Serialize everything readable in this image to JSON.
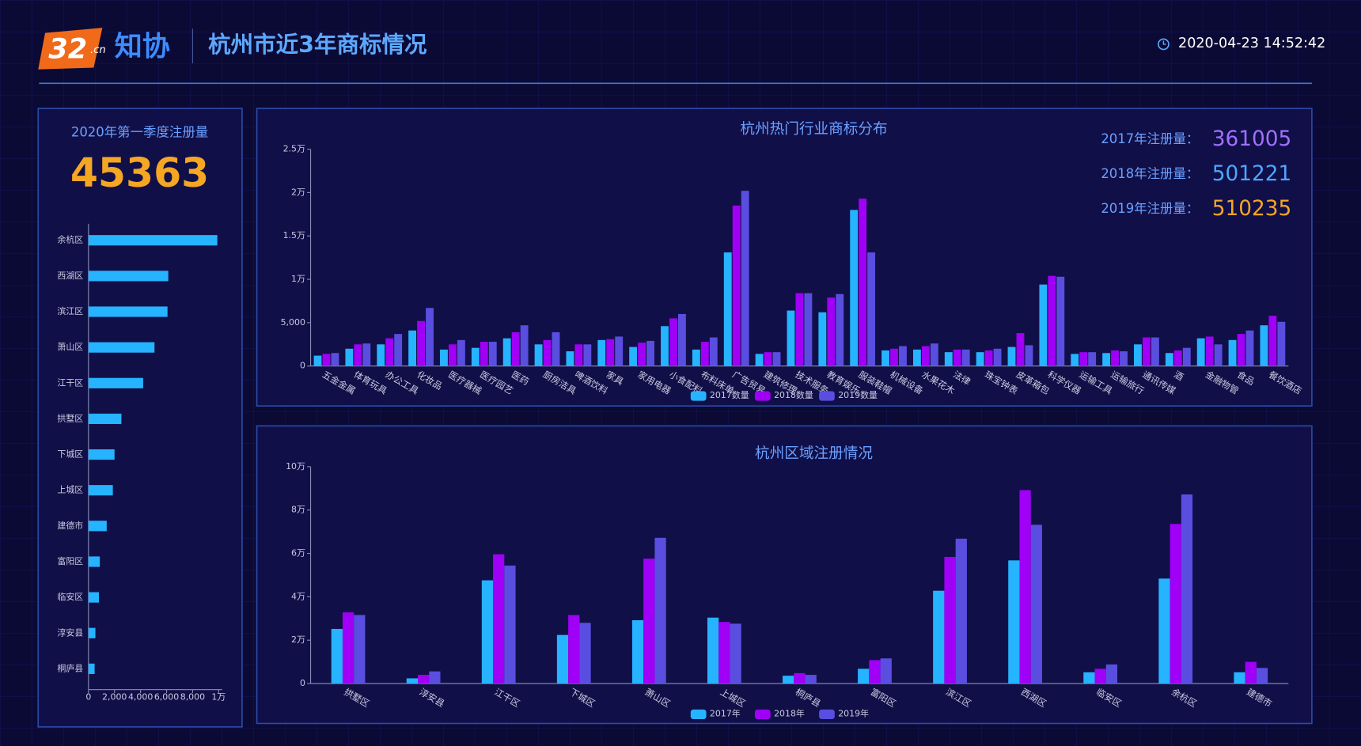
{
  "header": {
    "logo_number": "32",
    "logo_domain": ".cn",
    "logo_name": "知协",
    "title": "杭州市近3年商标情况",
    "datetime": "2020-04-23 14:52:42"
  },
  "summary": {
    "title": "2020年第一季度注册量",
    "total": 45363
  },
  "kpis": [
    {
      "label": "2017年注册量：",
      "value": 361005,
      "color": "#a070ff"
    },
    {
      "label": "2018年注册量：",
      "value": 501221,
      "color": "#4da6ff"
    },
    {
      "label": "2019年注册量：",
      "value": 510235,
      "color": "#f5a623"
    }
  ],
  "chart_data": [
    {
      "type": "bar",
      "orientation": "horizontal",
      "color": "#26b3ff",
      "categories": [
        "余杭区",
        "西湖区",
        "滨江区",
        "萧山区",
        "江干区",
        "拱墅区",
        "下城区",
        "上城区",
        "建德市",
        "富阳区",
        "临安区",
        "淳安县",
        "桐庐县"
      ],
      "values": [
        9900,
        6130,
        6070,
        5070,
        4200,
        2530,
        2000,
        1870,
        1400,
        870,
        800,
        530,
        470
      ],
      "xlim": [
        0,
        10000
      ],
      "xticks": [
        0,
        {
          "value": 2000,
          "label": "2,000"
        },
        {
          "value": 4000,
          "label": "4,000"
        },
        {
          "value": 6000,
          "label": "6,000"
        },
        {
          "value": 8000,
          "label": "8,000"
        },
        {
          "value": 10000,
          "label": "1万"
        }
      ]
    },
    {
      "type": "bar",
      "title": "杭州热门行业商标分布",
      "categories": [
        "五金金属",
        "体育玩具",
        "办公工具",
        "化妆品",
        "医疗器械",
        "医疗园艺",
        "医药",
        "厨房洁具",
        "啤酒饮料",
        "家具",
        "家用电器",
        "小食配料",
        "布料床单",
        "广告贸易",
        "建筑修理",
        "技术服务",
        "教育娱乐",
        "服装鞋帽",
        "机械设备",
        "水果花木",
        "法律",
        "珠宝钟表",
        "皮革箱包",
        "科学仪器",
        "运输工具",
        "运输旅行",
        "通讯传媒",
        "酒",
        "金融物管",
        "食品",
        "餐饮酒店"
      ],
      "series": [
        {
          "name": "2017数量",
          "color": "#26b3ff",
          "values": [
            1200,
            2000,
            2500,
            4100,
            1900,
            2100,
            3200,
            2500,
            1700,
            3000,
            2200,
            4600,
            1900,
            13100,
            1400,
            6400,
            6200,
            18000,
            1800,
            1900,
            1600,
            1600,
            2200,
            9400,
            1400,
            1500,
            2500,
            1500,
            3200,
            3000,
            4700
          ]
        },
        {
          "name": "2018数量",
          "color": "#a000f5",
          "values": [
            1400,
            2500,
            3200,
            5200,
            2500,
            2800,
            3900,
            3000,
            2500,
            3100,
            2700,
            5500,
            2800,
            18500,
            1600,
            8400,
            7900,
            19300,
            2000,
            2300,
            1900,
            1800,
            3800,
            10400,
            1600,
            1800,
            3300,
            1800,
            3400,
            3700,
            5800
          ]
        },
        {
          "name": "2019数量",
          "color": "#5a4ee0",
          "values": [
            1500,
            2600,
            3700,
            6700,
            3000,
            2800,
            4700,
            3900,
            2500,
            3400,
            2900,
            6000,
            3300,
            20200,
            1600,
            8400,
            8300,
            13100,
            2300,
            2600,
            1900,
            2000,
            2400,
            10300,
            1600,
            1700,
            3300,
            2100,
            2500,
            4100,
            5100
          ]
        }
      ],
      "ylim": [
        0,
        25000
      ],
      "yticks": [
        0,
        {
          "value": 5000,
          "label": "5,000"
        },
        {
          "value": 10000,
          "label": "1万"
        },
        {
          "value": 15000,
          "label": "1.5万"
        },
        {
          "value": 20000,
          "label": "2万"
        },
        {
          "value": 25000,
          "label": "2.5万"
        }
      ]
    },
    {
      "type": "bar",
      "title": "杭州区域注册情况",
      "categories": [
        "拱墅区",
        "淳安县",
        "江干区",
        "下城区",
        "萧山区",
        "上城区",
        "桐庐县",
        "富阳区",
        "滨江区",
        "西湖区",
        "临安区",
        "余杭区",
        "建德市"
      ],
      "series": [
        {
          "name": "2017年",
          "color": "#26b3ff",
          "values": [
            25200,
            2400,
            47600,
            22400,
            29200,
            30400,
            3600,
            6800,
            42800,
            56800,
            5200,
            48400,
            5200
          ]
        },
        {
          "name": "2018年",
          "color": "#a000f5",
          "values": [
            32800,
            4000,
            59600,
            31600,
            57600,
            28400,
            4800,
            10800,
            58400,
            89200,
            6800,
            73600,
            10000
          ]
        },
        {
          "name": "2019年",
          "color": "#5a4ee0",
          "values": [
            31600,
            5600,
            54400,
            28000,
            67200,
            27600,
            4000,
            11600,
            66800,
            73200,
            8800,
            87200,
            7200
          ]
        }
      ],
      "ylim": [
        0,
        100000
      ],
      "yticks": [
        0,
        {
          "value": 20000,
          "label": "2万"
        },
        {
          "value": 40000,
          "label": "4万"
        },
        {
          "value": 60000,
          "label": "6万"
        },
        {
          "value": 80000,
          "label": "8万"
        },
        {
          "value": 100000,
          "label": "10万"
        }
      ]
    }
  ]
}
